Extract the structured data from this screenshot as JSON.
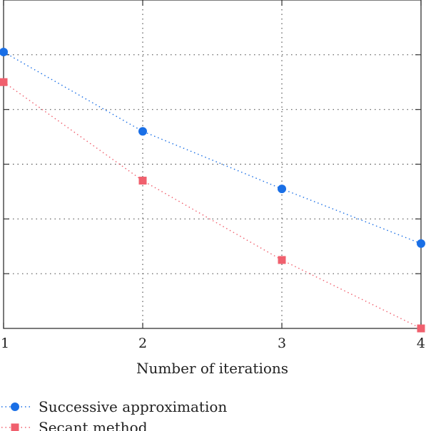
{
  "chart_data": {
    "type": "line",
    "title": "",
    "xlabel": "Number of iterations",
    "ylabel": "",
    "x": [
      1,
      2,
      3,
      4
    ],
    "x_tick_labels": [
      "1",
      "2",
      "3",
      "4"
    ],
    "xlim": [
      1,
      4
    ],
    "ylim": [
      0,
      6
    ],
    "grid": true,
    "grid_style": "dotted",
    "legend_position": "bottom-left",
    "series": [
      {
        "name": "Successive approximation",
        "values": [
          5.05,
          3.6,
          2.55,
          1.55
        ],
        "color": "#1a6fe6",
        "marker": "circle",
        "line_style": "dotted"
      },
      {
        "name": "Secant method",
        "values": [
          4.5,
          2.7,
          1.25,
          0.0
        ],
        "color": "#f0606e",
        "marker": "square",
        "line_style": "dotted"
      }
    ]
  }
}
